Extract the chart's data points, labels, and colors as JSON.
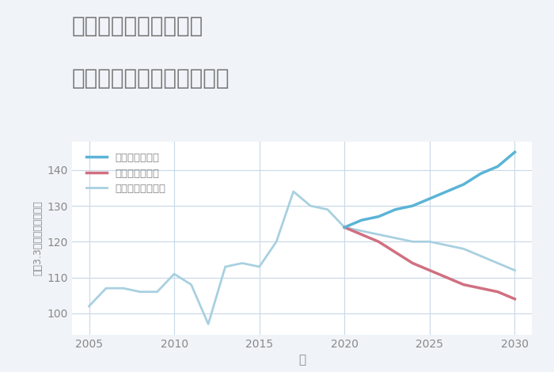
{
  "title_line1": "岐阜県多治見市窯町の",
  "title_line2": "中古マンションの価格推移",
  "xlabel": "年",
  "ylabel": "坪（3.3㎡）単価（万円）",
  "background_color": "#f0f4f8",
  "plot_bg_color": "#ffffff",
  "grid_color": "#c8d8e8",
  "title_color": "#777777",
  "axis_color": "#888888",
  "historical": {
    "years": [
      2005,
      2006,
      2007,
      2008,
      2009,
      2010,
      2011,
      2012,
      2013,
      2014,
      2015,
      2016,
      2017,
      2018,
      2019,
      2020
    ],
    "values": [
      102,
      107,
      107,
      106,
      106,
      111,
      108,
      97,
      113,
      114,
      113,
      120,
      134,
      130,
      129,
      124
    ]
  },
  "good_scenario": {
    "years": [
      2020,
      2021,
      2022,
      2023,
      2024,
      2025,
      2026,
      2027,
      2028,
      2029,
      2030
    ],
    "values": [
      124,
      126,
      127,
      129,
      130,
      132,
      134,
      136,
      139,
      141,
      145
    ]
  },
  "bad_scenario": {
    "years": [
      2020,
      2021,
      2022,
      2023,
      2024,
      2025,
      2026,
      2027,
      2028,
      2029,
      2030
    ],
    "values": [
      124,
      122,
      120,
      117,
      114,
      112,
      110,
      108,
      107,
      106,
      104
    ]
  },
  "normal_scenario": {
    "years": [
      2020,
      2021,
      2022,
      2023,
      2024,
      2025,
      2026,
      2027,
      2028,
      2029,
      2030
    ],
    "values": [
      124,
      123,
      122,
      121,
      120,
      120,
      119,
      118,
      116,
      114,
      112
    ]
  },
  "good_color": "#5ab4d6",
  "bad_color": "#d07080",
  "normal_color": "#a8d0e0",
  "historical_color": "#a8d0e0",
  "ylim": [
    94,
    148
  ],
  "xlim": [
    2004,
    2031
  ],
  "yticks": [
    100,
    110,
    120,
    130,
    140
  ],
  "xticks": [
    2005,
    2010,
    2015,
    2020,
    2025,
    2030
  ],
  "legend_labels": [
    "グッドシナリオ",
    "バッドシナリオ",
    "ノーマルシナリオ"
  ],
  "title_fontsize": 20,
  "label_fontsize": 11
}
